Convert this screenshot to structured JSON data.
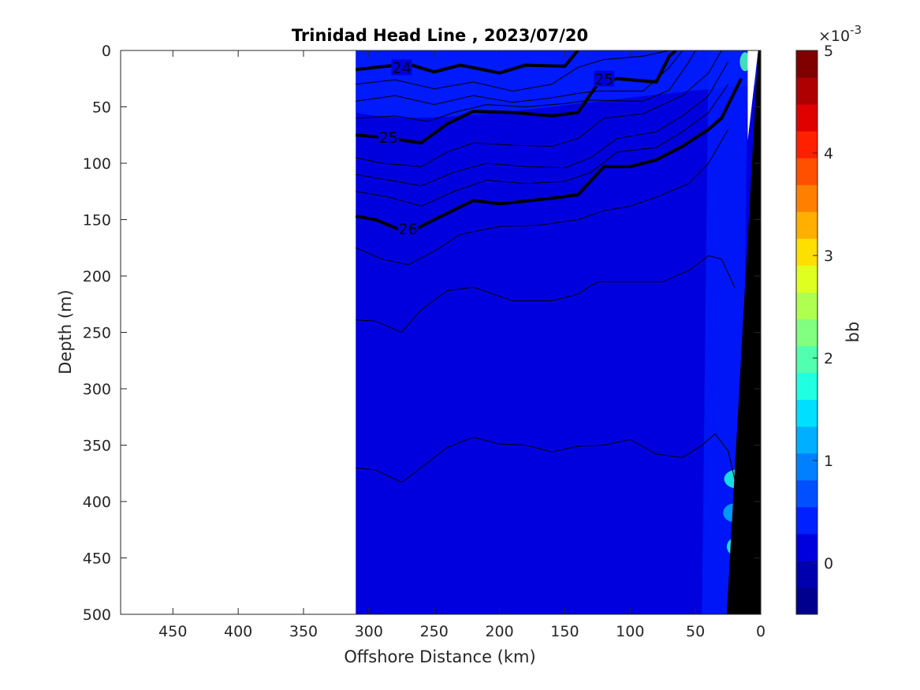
{
  "chart_data": {
    "type": "heatmap",
    "title": "Trinidad Head Line , 2023/07/20",
    "xlabel": "Offshore Distance (km)",
    "ylabel": "Depth (m)",
    "xlim": [
      490,
      0
    ],
    "ylim": [
      500,
      0
    ],
    "x_reversed": true,
    "y_reversed": true,
    "x_ticks": [
      "450",
      "400",
      "350",
      "300",
      "250",
      "200",
      "150",
      "100",
      "50",
      "0"
    ],
    "y_ticks": [
      "0",
      "50",
      "100",
      "150",
      "200",
      "250",
      "300",
      "350",
      "400",
      "450",
      "500"
    ],
    "data_extent_km": [
      310,
      0
    ],
    "background_value": 0.2,
    "colorbar": {
      "label": "bb",
      "exponent_label": "×10",
      "exponent_sup": "-3",
      "min": -0.5,
      "max": 5,
      "ticks": [
        "0",
        "1",
        "2",
        "3",
        "4",
        "5"
      ],
      "colors": [
        "#00008F",
        "#0000AF",
        "#0000DF",
        "#0020FF",
        "#0050FF",
        "#0080FF",
        "#00AFFF",
        "#00DFFF",
        "#20FFDF",
        "#50FFAF",
        "#80FF80",
        "#AFFF50",
        "#DFFF20",
        "#FFDF00",
        "#FFAF00",
        "#FF8000",
        "#FF5000",
        "#FF2000",
        "#DF0000",
        "#AF0000",
        "#800000"
      ]
    },
    "density_contours": [
      {
        "level": 24,
        "label": "24",
        "bold": true,
        "label_at": [
          275,
          15
        ],
        "points": [
          [
            310,
            17
          ],
          [
            295,
            15
          ],
          [
            270,
            12
          ],
          [
            250,
            19
          ],
          [
            230,
            13
          ],
          [
            200,
            20
          ],
          [
            180,
            13
          ],
          [
            150,
            14
          ],
          [
            140,
            0
          ]
        ]
      },
      {
        "level": 25,
        "label": "25",
        "bold": true,
        "label_at": [
          285,
          77
        ],
        "points": [
          [
            310,
            75
          ],
          [
            290,
            77
          ],
          [
            260,
            82
          ],
          [
            240,
            65
          ],
          [
            220,
            54
          ],
          [
            190,
            55
          ],
          [
            160,
            58
          ],
          [
            140,
            55
          ],
          [
            125,
            30
          ],
          [
            110,
            25
          ],
          [
            80,
            28
          ],
          [
            70,
            5
          ],
          [
            65,
            0
          ]
        ]
      },
      {
        "level": 25,
        "label": "25",
        "bold": true,
        "label_at": [
          120,
          25
        ],
        "points": [
          [
            125,
            30
          ],
          [
            115,
            25
          ]
        ]
      },
      {
        "level": 26,
        "label": "26",
        "bold": true,
        "label_at": [
          270,
          158
        ],
        "points": [
          [
            310,
            147
          ],
          [
            295,
            150
          ],
          [
            270,
            162
          ],
          [
            250,
            150
          ],
          [
            220,
            133
          ],
          [
            200,
            136
          ],
          [
            160,
            131
          ],
          [
            140,
            128
          ],
          [
            120,
            103
          ],
          [
            100,
            103
          ],
          [
            80,
            97
          ],
          [
            60,
            85
          ],
          [
            40,
            70
          ],
          [
            30,
            60
          ],
          [
            15,
            25
          ]
        ]
      }
    ],
    "bathymetry_top_km": 2,
    "bathymetry_bottom_km": 26
  }
}
